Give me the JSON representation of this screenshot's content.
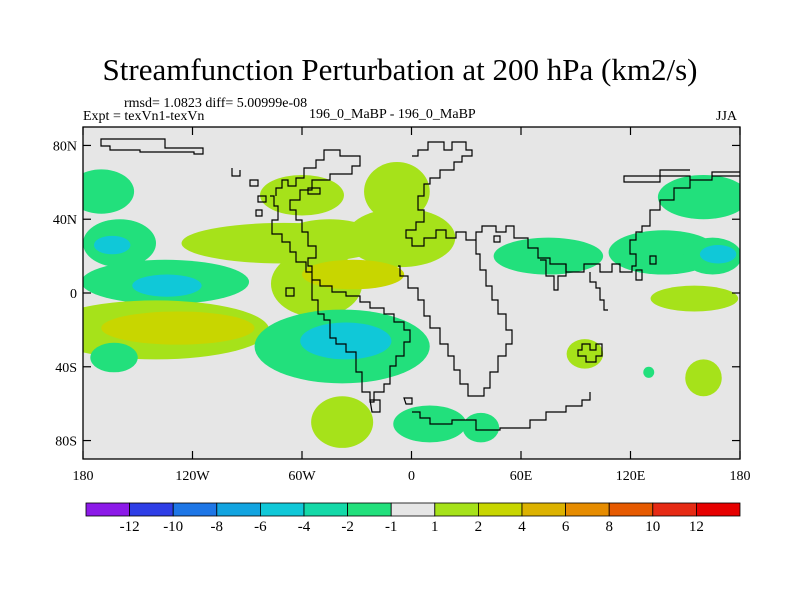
{
  "chart_data": {
    "type": "heatmap",
    "title": "Streamfunction Perturbation at 200 hPa (km2/s)",
    "stats_text": "rmsd= 1.0823 diff= 5.00999e-08",
    "experiment_label": "Expt = texVn1-texVn",
    "case_label": "196_0_MaBP - 196_0_MaBP",
    "season": "JJA",
    "x_axis": {
      "range": [
        -180,
        180
      ],
      "ticks": [
        -180,
        -120,
        -60,
        0,
        60,
        120,
        180
      ],
      "tick_labels": [
        "180",
        "120W",
        "60W",
        "0",
        "60E",
        "120E",
        "180"
      ]
    },
    "y_axis": {
      "range": [
        -90,
        90
      ],
      "ticks": [
        80,
        40,
        0,
        -40,
        -80
      ],
      "tick_labels": [
        "80N",
        "40N",
        "0",
        "40S",
        "80S"
      ]
    },
    "colorbar": {
      "labels": [
        "-12",
        "-10",
        "-8",
        "-6",
        "-4",
        "-2",
        "-1",
        "1",
        "2",
        "4",
        "6",
        "8",
        "10",
        "12"
      ],
      "colors": [
        "#8c1ae8",
        "#2e3ee6",
        "#1e76e6",
        "#12a4e0",
        "#10c8d8",
        "#14d9a8",
        "#22e07c",
        "#e6e6e6",
        "#a6e21a",
        "#c8d600",
        "#dcb200",
        "#e68c00",
        "#e65a00",
        "#e62a14",
        "#e60000"
      ]
    },
    "anomalies": [
      {
        "lon": -170,
        "lat": 55,
        "rx": 18,
        "ry": 12,
        "bin": 6
      },
      {
        "lon": -160,
        "lat": 27,
        "rx": 20,
        "ry": 13,
        "bin": 6
      },
      {
        "lon": -164,
        "lat": 26,
        "rx": 10,
        "ry": 5,
        "bin": 4
      },
      {
        "lon": -135,
        "lat": 6,
        "rx": 46,
        "ry": 12,
        "bin": 6
      },
      {
        "lon": -134,
        "lat": 4,
        "rx": 19,
        "ry": 6,
        "bin": 4
      },
      {
        "lon": -70,
        "lat": 27,
        "rx": 56,
        "ry": 11,
        "bin": 8
      },
      {
        "lon": -52,
        "lat": 5,
        "rx": 25,
        "ry": 18,
        "bin": 8
      },
      {
        "lon": -60,
        "lat": 53,
        "rx": 23,
        "ry": 11,
        "bin": 8
      },
      {
        "lon": -6,
        "lat": 30,
        "rx": 30,
        "ry": 16,
        "bin": 8
      },
      {
        "lon": -8,
        "lat": 55,
        "rx": 18,
        "ry": 16,
        "bin": 8
      },
      {
        "lon": -45,
        "lat": 29,
        "rx": 27,
        "ry": 11,
        "bin": 8
      },
      {
        "lon": -32,
        "lat": 10,
        "rx": 28,
        "ry": 8,
        "bin": 9
      },
      {
        "lon": -140,
        "lat": -20,
        "rx": 62,
        "ry": 16,
        "bin": 8
      },
      {
        "lon": -128,
        "lat": -19,
        "rx": 42,
        "ry": 9,
        "bin": 9
      },
      {
        "lon": -163,
        "lat": -35,
        "rx": 13,
        "ry": 8,
        "bin": 6
      },
      {
        "lon": -38,
        "lat": -29,
        "rx": 48,
        "ry": 20,
        "bin": 6
      },
      {
        "lon": -36,
        "lat": -26,
        "rx": 25,
        "ry": 10,
        "bin": 4
      },
      {
        "lon": -38,
        "lat": -70,
        "rx": 17,
        "ry": 14,
        "bin": 8
      },
      {
        "lon": 10,
        "lat": -71,
        "rx": 20,
        "ry": 10,
        "bin": 6
      },
      {
        "lon": 38,
        "lat": -73,
        "rx": 10,
        "ry": 8,
        "bin": 6
      },
      {
        "lon": 75,
        "lat": 20,
        "rx": 30,
        "ry": 10,
        "bin": 6
      },
      {
        "lon": 160,
        "lat": 52,
        "rx": 25,
        "ry": 12,
        "bin": 6
      },
      {
        "lon": 138,
        "lat": 22,
        "rx": 30,
        "ry": 12,
        "bin": 6
      },
      {
        "lon": 165,
        "lat": 20,
        "rx": 16,
        "ry": 10,
        "bin": 6
      },
      {
        "lon": 168,
        "lat": 21,
        "rx": 10,
        "ry": 5,
        "bin": 4
      },
      {
        "lon": 155,
        "lat": -3,
        "rx": 24,
        "ry": 7,
        "bin": 8
      },
      {
        "lon": 95,
        "lat": -33,
        "rx": 10,
        "ry": 8,
        "bin": 8
      },
      {
        "lon": 130,
        "lat": -43,
        "rx": 3,
        "ry": 3,
        "bin": 6
      },
      {
        "lon": 160,
        "lat": -46,
        "rx": 10,
        "ry": 10,
        "bin": 8
      }
    ]
  }
}
